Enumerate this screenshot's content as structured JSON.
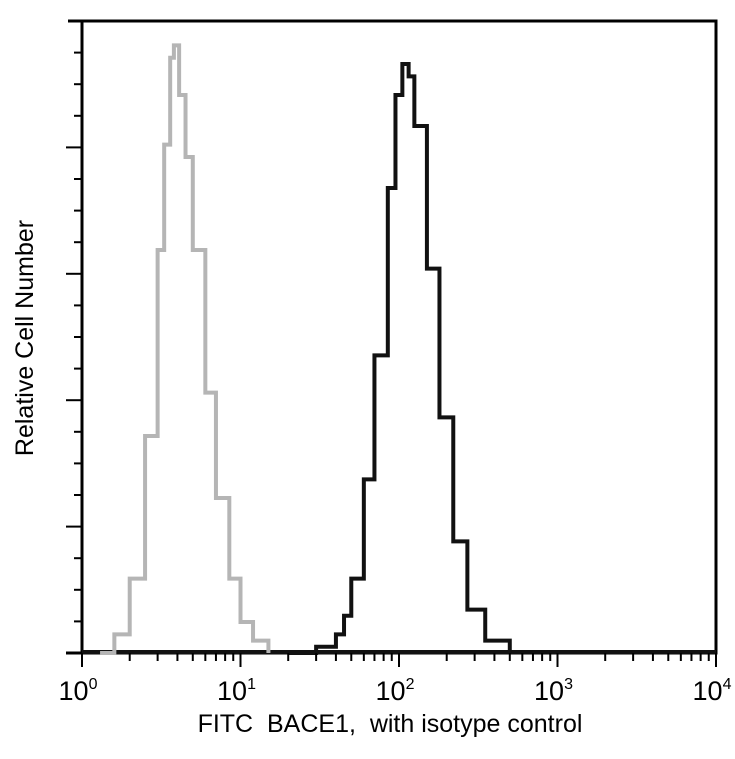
{
  "chart_data": {
    "type": "line",
    "title": "",
    "xlabel": "FITC  BACE1,  with isotype control",
    "ylabel": "Relative Cell Number",
    "x_scale": "log",
    "xlim": [
      1,
      10000
    ],
    "ylim": [
      0,
      100
    ],
    "grid": false,
    "x_ticks": [
      {
        "base": "10",
        "exp": "0",
        "value": 1
      },
      {
        "base": "10",
        "exp": "1",
        "value": 10
      },
      {
        "base": "10",
        "exp": "2",
        "value": 100
      },
      {
        "base": "10",
        "exp": "3",
        "value": 1000
      },
      {
        "base": "10",
        "exp": "4",
        "value": 10000
      }
    ],
    "series": [
      {
        "color": "#b5b5b5",
        "x": [
          1.3,
          1.6,
          2,
          2.5,
          3,
          3.3,
          3.6,
          3.8,
          4.1,
          4.5,
          5,
          6,
          7,
          8.5,
          10,
          12,
          15
        ],
        "y": [
          0,
          3,
          12,
          35,
          65,
          82,
          96,
          98,
          90,
          80,
          65,
          42,
          25,
          12,
          5,
          2,
          0
        ]
      },
      {
        "color": "#111111",
        "x": [
          20,
          30,
          40,
          45,
          50,
          60,
          70,
          85,
          95,
          105,
          115,
          125,
          150,
          180,
          220,
          270,
          350,
          500
        ],
        "y": [
          0,
          1,
          3,
          6,
          12,
          28,
          48,
          75,
          90,
          95,
          93,
          85,
          62,
          38,
          18,
          7,
          2,
          0
        ]
      }
    ]
  }
}
